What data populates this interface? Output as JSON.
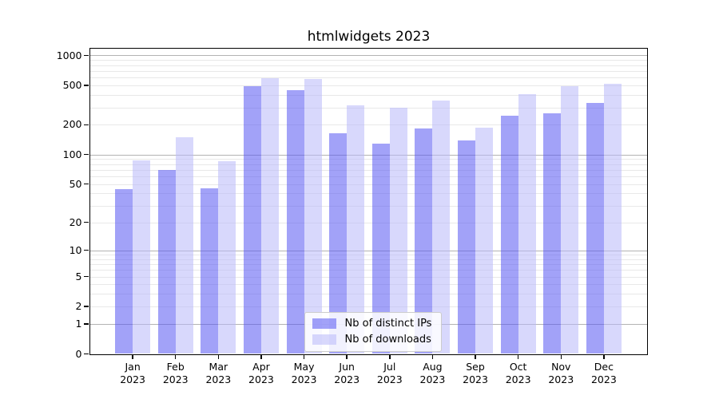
{
  "chart_data": {
    "type": "bar",
    "title": "htmlwidgets 2023",
    "months": [
      "Jan",
      "Feb",
      "Mar",
      "Apr",
      "May",
      "Jun",
      "Jul",
      "Aug",
      "Sep",
      "Oct",
      "Nov",
      "Dec"
    ],
    "year_label": "2023",
    "series": [
      {
        "id": "distinct-ips",
        "name": "Nb of distinct IPs",
        "color_hex": "#a3a3f7",
        "color_rgba": "rgba(85,85,243,0.55)",
        "values": [
          44,
          70,
          45,
          490,
          450,
          165,
          128,
          185,
          140,
          245,
          260,
          330
        ]
      },
      {
        "id": "downloads",
        "name": "Nb of downloads",
        "color_hex": "#d9d9fb",
        "color_rgba": "rgba(184,184,249,0.55)",
        "values": [
          88,
          150,
          86,
          585,
          580,
          315,
          295,
          350,
          186,
          410,
          495,
          520
        ]
      }
    ],
    "yscale": "log1p",
    "yticks": [
      0,
      1,
      2,
      5,
      10,
      20,
      50,
      100,
      200,
      500,
      1000
    ],
    "ylim": [
      0,
      1180
    ],
    "grid": "on",
    "legend_position": "inside-bottom-center",
    "xlabel": "",
    "ylabel": ""
  },
  "colors": {
    "axis": "#000000",
    "grid_major": "#b3b3b3",
    "grid_minor": "#e8e8e8",
    "background": "#ffffff"
  }
}
